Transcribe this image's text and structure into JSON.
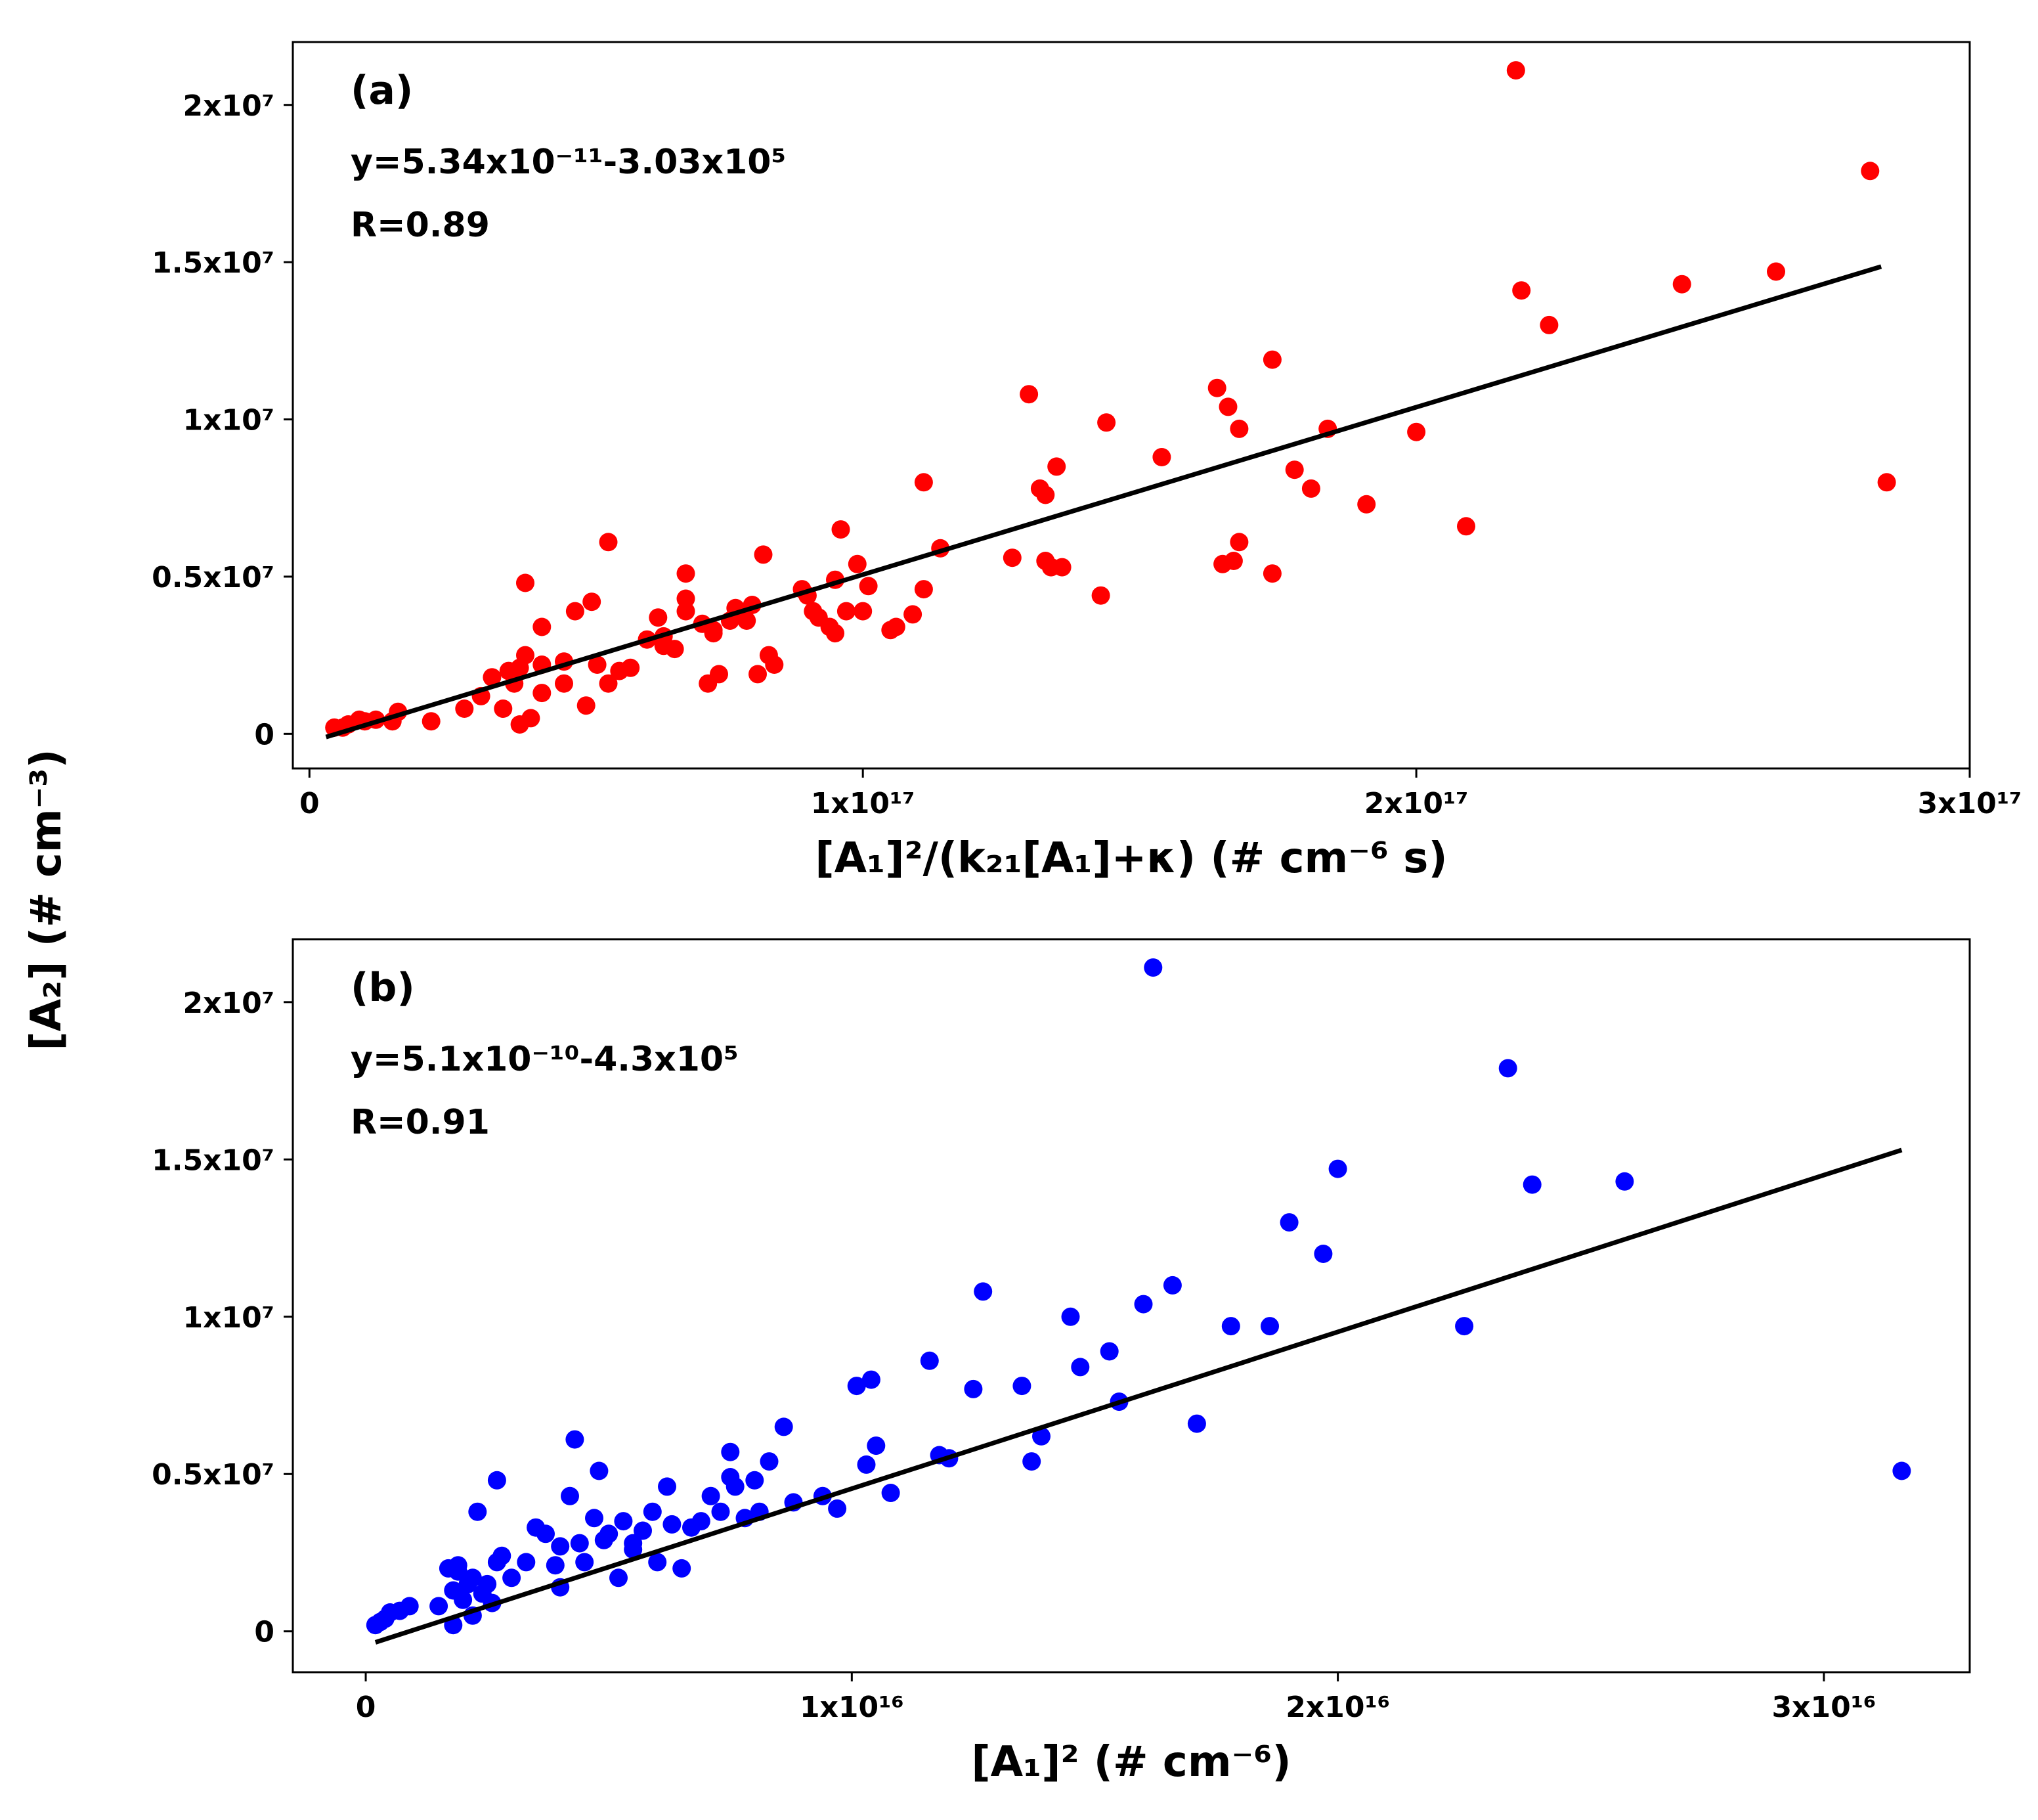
{
  "shared_ylabel": "[A₂] (# cm⁻³)",
  "chart_data": [
    {
      "type": "scatter",
      "panel_label": "(a)",
      "fit_text": "y=5.34x10⁻¹¹-3.03x10⁵",
      "r_text": "R=0.89",
      "xlabel": "[A₁]²/(k₂₁[A₁]+κ) (# cm⁻⁶ s)",
      "ylabel": "[A₂] (# cm⁻³)",
      "xlim": [
        -3000000000000000.0,
        3e+17
      ],
      "ylim": [
        -1100000.0,
        22000000.0
      ],
      "xticks": [
        0,
        1e+17,
        2e+17,
        3e+17
      ],
      "xtick_labels": [
        "0",
        "1x10¹⁷",
        "2x10¹⁷",
        "3x10¹⁷"
      ],
      "yticks": [
        0,
        5000000.0,
        10000000.0,
        15000000.0,
        20000000.0
      ],
      "ytick_labels": [
        "0",
        "0.5x10⁷",
        "1x10⁷",
        "1.5x10⁷",
        "2x10⁷"
      ],
      "marker_color": "#ff0000",
      "line_color": "#000000",
      "fit_line": {
        "x": [
          3000000000000000.0,
          2.84e+17
        ],
        "y": [
          -100000.0,
          14860000.0
        ]
      },
      "points": {
        "x": [
          4500000000000000.0,
          7000000000000000.0,
          1e+16,
          1.2e+16,
          1.5e+16,
          2.2e+16,
          3.1e+16,
          3.3e+16,
          6000000000000000.0,
          9000000000000000.0,
          1.6e+16,
          2.8e+16,
          3.7e+16,
          3.8e+16,
          3.9e+16,
          4.2e+16,
          4.2e+16,
          3.8e+16,
          4.6e+16,
          4e+16,
          4.2e+16,
          4.6e+16,
          4.8e+16,
          3.5e+16,
          3.6e+16,
          3.9e+16,
          5.2e+16,
          5e+16,
          5.4e+16,
          5.4e+16,
          5.1e+16,
          5.6e+16,
          5.8e+16,
          6.1e+16,
          6.3e+16,
          6.4e+16,
          6.6e+16,
          6.8e+16,
          6.8e+16,
          6.8e+16,
          7.2e+16,
          7.3e+16,
          7.4e+16,
          7.6e+16,
          7.7e+16,
          7.9e+16,
          8e+16,
          8.2e+16,
          8.3e+16,
          8.4e+16,
          8.1e+16,
          7.1e+16,
          7.3e+16,
          6.4e+16,
          8.9e+16,
          9e+16,
          9.1e+16,
          9.2e+16,
          9.4e+16,
          9.5e+16,
          9.5e+16,
          9.6e+16,
          9.7e+16,
          9.9e+16,
          1e+17,
          1.01e+17,
          1.05e+17,
          1.06e+17,
          1.09e+17,
          1.11e+17,
          1.11e+17,
          1.14e+17,
          1.27e+17,
          1.3e+17,
          1.32e+17,
          1.33e+17,
          1.33e+17,
          1.34e+17,
          1.35e+17,
          1.36e+17,
          1.43e+17,
          1.44e+17,
          1.54e+17,
          1.64e+17,
          1.65e+17,
          1.66e+17,
          1.67e+17,
          1.68e+17,
          1.68e+17,
          1.74e+17,
          1.74e+17,
          1.78e+17,
          1.81e+17,
          1.84e+17,
          1.91e+17,
          2e+17,
          2.09e+17,
          2.18e+17,
          2.19e+17,
          2.24e+17,
          2.48e+17,
          2.65e+17,
          2.82e+17,
          2.85e+17
        ],
        "y": [
          200000.0,
          300000.0,
          400000.0,
          450000.0,
          400000.0,
          400000.0,
          1200000.0,
          1800000.0,
          200000.0,
          450000.0,
          700000.0,
          800000.0,
          1600000.0,
          2100000.0,
          2500000.0,
          1300000.0,
          2200000.0,
          300000.0,
          1600000.0,
          500000.0,
          3400000.0,
          2300000.0,
          3900000.0,
          800000.0,
          2000000.0,
          4800000.0,
          2200000.0,
          900000.0,
          1600000.0,
          6100000.0,
          4200000.0,
          2000000.0,
          2100000.0,
          3000000.0,
          3700000.0,
          2800000.0,
          2700000.0,
          3900000.0,
          4300000.0,
          5100000.0,
          1600000.0,
          3300000.0,
          1900000.0,
          3600000.0,
          4000000.0,
          3600000.0,
          4100000.0,
          5700000.0,
          2500000.0,
          2200000.0,
          1900000.0,
          3500000.0,
          3200000.0,
          3100000.0,
          4600000.0,
          4400000.0,
          3900000.0,
          3700000.0,
          3400000.0,
          4900000.0,
          3200000.0,
          6500000.0,
          3900000.0,
          5400000.0,
          3900000.0,
          4700000.0,
          3300000.0,
          3400000.0,
          3800000.0,
          4600000.0,
          8000000.0,
          5900000.0,
          5600000.0,
          10800000.0,
          7800000.0,
          5500000.0,
          7600000.0,
          5300000.0,
          8500000.0,
          5300000.0,
          4400000.0,
          9900000.0,
          8800000.0,
          11000000.0,
          5400000.0,
          10400000.0,
          5500000.0,
          6100000.0,
          9700000.0,
          5100000.0,
          11900000.0,
          8400000.0,
          7800000.0,
          9700000.0,
          7300000.0,
          9600000.0,
          6600000.0,
          21100000.0,
          14100000.0,
          13000000.0,
          14300000.0,
          14700000.0,
          17900000.0,
          8000000.0
        ]
      }
    },
    {
      "type": "scatter",
      "panel_label": "(b)",
      "fit_text": "y=5.1x10⁻¹⁰-4.3x10⁵",
      "r_text": "R=0.91",
      "xlabel": "[A₁]² (# cm⁻⁶)",
      "ylabel": "[A₂] (# cm⁻³)",
      "xlim": [
        -1500000000000000.0,
        3.3e+16
      ],
      "ylim": [
        -1300000.0,
        22000000.0
      ],
      "xticks": [
        0,
        1e+16,
        2e+16,
        3e+16
      ],
      "xtick_labels": [
        "0",
        "1x10¹⁶",
        "2x10¹⁶",
        "3x10¹⁶"
      ],
      "yticks": [
        0,
        5000000.0,
        10000000.0,
        15000000.0,
        20000000.0
      ],
      "ytick_labels": [
        "0",
        "0.5x10⁷",
        "1x10⁷",
        "1.5x10⁷",
        "2x10⁷"
      ],
      "marker_color": "#0000ff",
      "line_color": "#000000",
      "fit_line": {
        "x": [
          200000000000000.0,
          3.16e+16
        ],
        "y": [
          -350000.0,
          15300000.0
        ]
      },
      "points": {
        "x": [
          200000000000000.0,
          300000000000000.0,
          400000000000000.0,
          500000000000000.0,
          700000000000000.0,
          900000000000000.0,
          1500000000000000.0,
          1700000000000000.0,
          1800000000000000.0,
          1800000000000000.0,
          1900000000000000.0,
          2000000000000000.0,
          2100000000000000.0,
          2200000000000000.0,
          2200000000000000.0,
          2300000000000000.0,
          2400000000000000.0,
          2500000000000000.0,
          2600000000000000.0,
          2700000000000000.0,
          2800000000000000.0,
          3000000000000000.0,
          3300000000000000.0,
          3500000000000000.0,
          3700000000000000.0,
          3900000000000000.0,
          4000000000000000.0,
          4200000000000000.0,
          4300000000000000.0,
          4400000000000000.0,
          4500000000000000.0,
          4700000000000000.0,
          4800000000000000.0,
          4900000000000000.0,
          5000000000000000.0,
          5200000000000000.0,
          5300000000000000.0,
          5500000000000000.0,
          5700000000000000.0,
          5900000000000000.0,
          6000000000000000.0,
          6200000000000000.0,
          6300000000000000.0,
          6500000000000000.0,
          6700000000000000.0,
          6900000000000000.0,
          7100000000000000.0,
          7300000000000000.0,
          7500000000000000.0,
          7600000000000000.0,
          7800000000000000.0,
          8000000000000000.0,
          8100000000000000.0,
          8300000000000000.0,
          8600000000000000.0,
          8800000000000000.0,
          9400000000000000.0,
          9700000000000000.0,
          1.01e+16,
          1.03e+16,
          1.04e+16,
          1.05e+16,
          1.08e+16,
          1.16e+16,
          1.18e+16,
          1.2e+16,
          1.25e+16,
          1.27e+16,
          1.35e+16,
          1.37e+16,
          1.39e+16,
          1.45e+16,
          1.47e+16,
          1.53e+16,
          1.55e+16,
          1.6e+16,
          1.62e+16,
          1.66e+16,
          1.71e+16,
          1.78e+16,
          1.86e+16,
          1.9e+16,
          1.97e+16,
          2e+16,
          2.26e+16,
          2.35e+16,
          2.4e+16,
          2.59e+16,
          3.16e+16,
          7500000000000000.0,
          5500000000000000.0,
          4000000000000000.0,
          1900000000000000.0,
          2700000000000000.0
        ],
        "y": [
          200000.0,
          300000.0,
          400000.0,
          600000.0,
          650000.0,
          800000.0,
          800000.0,
          2000000.0,
          1300000.0,
          200000.0,
          2100000.0,
          1000000.0,
          1500000.0,
          1700000.0,
          500000.0,
          3800000.0,
          1200000.0,
          1500000.0,
          900000.0,
          4800000.0,
          2400000.0,
          1700000.0,
          2200000.0,
          3300000.0,
          3100000.0,
          2100000.0,
          1400000.0,
          4300000.0,
          6100000.0,
          2800000.0,
          2200000.0,
          3600000.0,
          5100000.0,
          2900000.0,
          3100000.0,
          1700000.0,
          3500000.0,
          2600000.0,
          3200000.0,
          3800000.0,
          2200000.0,
          4600000.0,
          3400000.0,
          2000000.0,
          3300000.0,
          3500000.0,
          4300000.0,
          3800000.0,
          5700000.0,
          4600000.0,
          3600000.0,
          4800000.0,
          3800000.0,
          5400000.0,
          6500000.0,
          4100000.0,
          4300000.0,
          3900000.0,
          7800000.0,
          5300000.0,
          8000000.0,
          5900000.0,
          4400000.0,
          8600000.0,
          5600000.0,
          5500000.0,
          7700000.0,
          10800000.0,
          7800000.0,
          5400000.0,
          6200000.0,
          10000000.0,
          8400000.0,
          8900000.0,
          7300000.0,
          10400000.0,
          21100000.0,
          11000000.0,
          6600000.0,
          9700000.0,
          9700000.0,
          13000000.0,
          12000000.0,
          14700000.0,
          9700000.0,
          17900000.0,
          14200000.0,
          14300000.0,
          5100000.0,
          4900000.0,
          2800000.0,
          2700000.0,
          1900000.0,
          2200000.0
        ]
      }
    }
  ]
}
